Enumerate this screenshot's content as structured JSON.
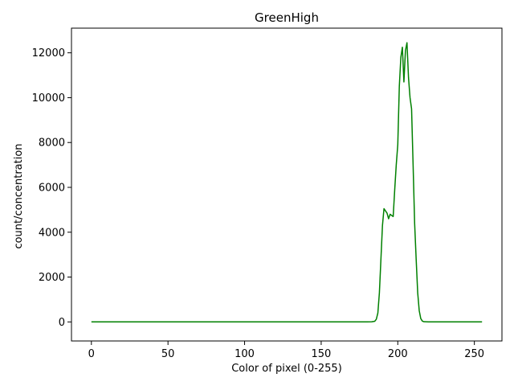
{
  "chart_data": {
    "type": "line",
    "title": "GreenHigh",
    "xlabel": "Color of pixel (0-255)",
    "ylabel": "count/concentration",
    "xlim": [
      -13,
      268
    ],
    "ylim": [
      -850,
      13100
    ],
    "xticks": [
      0,
      50,
      100,
      150,
      200,
      250
    ],
    "yticks": [
      0,
      2000,
      4000,
      6000,
      8000,
      10000,
      12000
    ],
    "grid": false,
    "series": [
      {
        "color": "#008000",
        "points": [
          [
            0,
            0
          ],
          [
            180,
            0
          ],
          [
            183,
            5
          ],
          [
            185,
            30
          ],
          [
            186,
            120
          ],
          [
            187,
            400
          ],
          [
            188,
            1300
          ],
          [
            189,
            2800
          ],
          [
            190,
            4300
          ],
          [
            191,
            5050
          ],
          [
            192,
            4950
          ],
          [
            193,
            4850
          ],
          [
            194,
            4600
          ],
          [
            195,
            4800
          ],
          [
            196,
            4750
          ],
          [
            197,
            4700
          ],
          [
            198,
            5900
          ],
          [
            199,
            7000
          ],
          [
            200,
            7900
          ],
          [
            201,
            10500
          ],
          [
            202,
            11800
          ],
          [
            203,
            12250
          ],
          [
            204,
            10700
          ],
          [
            205,
            12100
          ],
          [
            206,
            12450
          ],
          [
            207,
            10900
          ],
          [
            208,
            10000
          ],
          [
            209,
            9500
          ],
          [
            210,
            7000
          ],
          [
            211,
            4400
          ],
          [
            212,
            2800
          ],
          [
            213,
            1300
          ],
          [
            214,
            500
          ],
          [
            215,
            150
          ],
          [
            216,
            40
          ],
          [
            217,
            10
          ],
          [
            220,
            0
          ],
          [
            255,
            0
          ]
        ]
      }
    ]
  }
}
